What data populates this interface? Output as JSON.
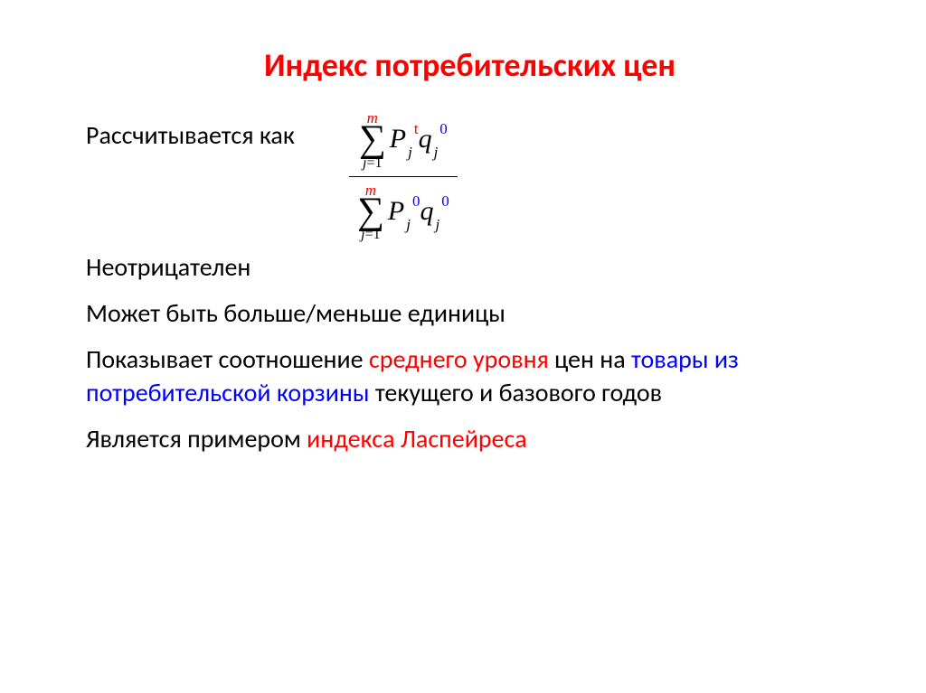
{
  "colors": {
    "title": "#ff0000",
    "body": "#000000",
    "red_text": "#ff0000",
    "blue_text": "#0000ff",
    "formula_black": "#000000",
    "formula_red": "#ff0000",
    "formula_blue": "#0000ff",
    "hr": "#000000",
    "background": "#ffffff"
  },
  "typography": {
    "title_fontsize": 36,
    "body_fontsize": 28,
    "title_weight": 700
  },
  "title": "Индекс потребительских цен",
  "calc_label": "Рассчитывается как",
  "formula": {
    "sum_upper": "m",
    "sum_lower_lhs": "j",
    "sum_lower_eq": "=",
    "sum_lower_rhs": "1",
    "P": "P",
    "q": "q",
    "sub_j": "j",
    "num_P_sup": "t",
    "num_q_sup": "0",
    "den_P_sup": "0",
    "den_q_sup": "0",
    "sigma": "∑"
  },
  "lines": {
    "l1": "Неотрицателен",
    "l2": "Может быть больше/меньше единицы",
    "l3a": "Показывает соотношение ",
    "l3b": "среднего уровня",
    "l3c": " цен на ",
    "l3d": "товары из потребительской корзины",
    "l3e": " текущего и базового годов",
    "l4a": "Является примером ",
    "l4b": "индекса Ласпейреса"
  }
}
